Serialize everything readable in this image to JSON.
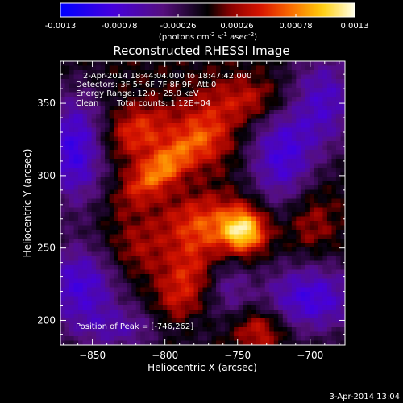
{
  "colorbar": {
    "ticks": [
      -0.0013,
      -0.00078,
      -0.00026,
      0.00026,
      0.00078,
      0.0013
    ],
    "tick_labels": [
      "-0.0013",
      "-0.00078",
      "-0.00026",
      "0.00026",
      "0.00078",
      "0.0013"
    ],
    "range": [
      -0.0013,
      0.0013
    ],
    "unit_base": "(photons cm",
    "unit_exp1": "-2",
    "unit_mid": " s",
    "unit_exp2": "-1",
    "unit_end": " asec",
    "unit_exp3": "-2",
    "unit_close": ")"
  },
  "info": {
    "time_range": "2-Apr-2014 18:44:04.000 to 18:47:42.000",
    "detectors": "Detectors: 3F 5F 6F 7F 8F 9F, Att 0",
    "energy": "Energy Range: 12.0 - 25.0 keV",
    "algorithm": "Clean",
    "counts": "Total counts: 1.12E+04",
    "peak": "Position of Peak = [-746,262]"
  },
  "footer": {
    "timestamp": "3-Apr-2014 13:04"
  },
  "chart_data": {
    "type": "heatmap",
    "title": "Reconstructed RHESSI Image",
    "xlabel": "Heliocentric X (arcsec)",
    "ylabel": "Heliocentric Y (arcsec)",
    "xlim": [
      -872,
      -676
    ],
    "ylim": [
      183,
      379
    ],
    "xticks": [
      -850,
      -800,
      -750,
      -700
    ],
    "yticks": [
      200,
      250,
      300,
      350
    ],
    "colorscale": "hot (blue-purple negative to red-yellow-white positive)",
    "peak_position": [
      -746,
      262
    ],
    "components": [
      {
        "x": -746,
        "y": 262,
        "amp": 0.00115,
        "sx": 11,
        "sy": 11,
        "rot": 0
      },
      {
        "x": -803,
        "y": 304,
        "amp": 0.0008,
        "sx": 21,
        "sy": 9,
        "rot": 40
      },
      {
        "x": -818,
        "y": 330,
        "amp": 0.00055,
        "sx": 17,
        "sy": 12,
        "rot": 20
      },
      {
        "x": -776,
        "y": 268,
        "amp": 0.00045,
        "sx": 20,
        "sy": 13,
        "rot": 0
      },
      {
        "x": -772,
        "y": 328,
        "amp": 0.0005,
        "sx": 14,
        "sy": 15,
        "rot": 0
      },
      {
        "x": -742,
        "y": 352,
        "amp": 0.00042,
        "sx": 20,
        "sy": 11,
        "rot": 0
      },
      {
        "x": -788,
        "y": 224,
        "amp": 0.00048,
        "sx": 11,
        "sy": 30,
        "rot": -20
      },
      {
        "x": -734,
        "y": 194,
        "amp": 0.00052,
        "sx": 13,
        "sy": 11,
        "rot": 0
      },
      {
        "x": -820,
        "y": 248,
        "amp": 0.0003,
        "sx": 17,
        "sy": 15,
        "rot": 0
      },
      {
        "x": -700,
        "y": 268,
        "amp": 0.0003,
        "sx": 12,
        "sy": 17,
        "rot": 0
      },
      {
        "x": -862,
        "y": 318,
        "amp": -0.0009,
        "sx": 15,
        "sy": 28,
        "rot": 0
      },
      {
        "x": -858,
        "y": 225,
        "amp": -0.0008,
        "sx": 20,
        "sy": 20,
        "rot": 0
      },
      {
        "x": -720,
        "y": 312,
        "amp": -0.00078,
        "sx": 16,
        "sy": 25,
        "rot": 0
      },
      {
        "x": -690,
        "y": 352,
        "amp": -0.0007,
        "sx": 17,
        "sy": 25,
        "rot": 0
      },
      {
        "x": -700,
        "y": 215,
        "amp": -0.00085,
        "sx": 25,
        "sy": 18,
        "rot": 0
      },
      {
        "x": -825,
        "y": 193,
        "amp": -0.0005,
        "sx": 30,
        "sy": 12,
        "rot": 0
      },
      {
        "x": -755,
        "y": 222,
        "amp": -0.0004,
        "sx": 10,
        "sy": 15,
        "rot": 0
      }
    ],
    "background_noise": 0.00012
  }
}
